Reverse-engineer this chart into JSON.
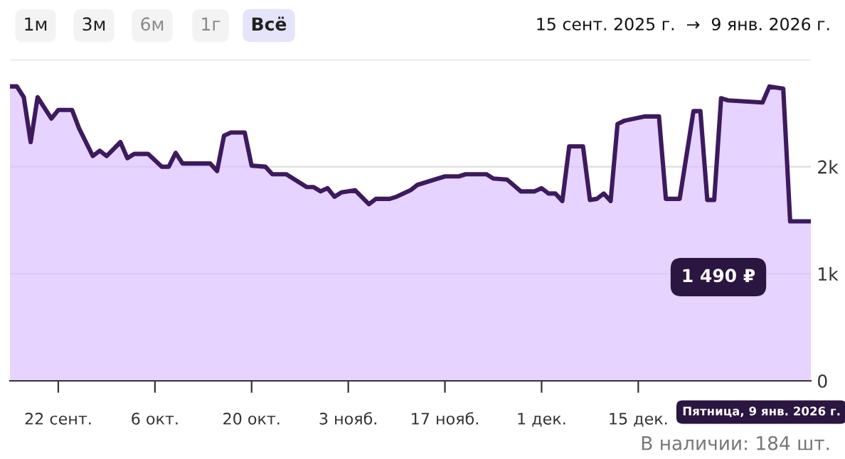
{
  "chart_data": {
    "type": "area",
    "x": [
      "2025-09-15",
      "2025-09-16",
      "2025-09-17",
      "2025-09-18",
      "2025-09-19",
      "2025-09-21",
      "2025-09-22",
      "2025-09-24",
      "2025-09-25",
      "2025-09-27",
      "2025-09-28",
      "2025-09-29",
      "2025-10-01",
      "2025-10-02",
      "2025-10-03",
      "2025-10-05",
      "2025-10-07",
      "2025-10-08",
      "2025-10-09",
      "2025-10-10",
      "2025-10-14",
      "2025-10-15",
      "2025-10-16",
      "2025-10-17",
      "2025-10-19",
      "2025-10-20",
      "2025-10-22",
      "2025-10-23",
      "2025-10-25",
      "2025-10-28",
      "2025-10-29",
      "2025-10-30",
      "2025-10-31",
      "2025-11-01",
      "2025-11-02",
      "2025-11-04",
      "2025-11-06",
      "2025-11-07",
      "2025-11-09",
      "2025-11-10",
      "2025-11-12",
      "2025-11-13",
      "2025-11-14",
      "2025-11-17",
      "2025-11-19",
      "2025-11-20",
      "2025-11-23",
      "2025-11-24",
      "2025-11-26",
      "2025-11-28",
      "2025-11-30",
      "2025-12-01",
      "2025-12-02",
      "2025-12-03",
      "2025-12-04",
      "2025-12-05",
      "2025-12-07",
      "2025-12-08",
      "2025-12-09",
      "2025-12-10",
      "2025-12-11",
      "2025-12-12",
      "2025-12-13",
      "2025-12-16",
      "2025-12-18",
      "2025-12-19",
      "2025-12-21",
      "2025-12-23",
      "2025-12-24",
      "2025-12-25",
      "2025-12-26",
      "2025-12-27",
      "2025-12-28",
      "2026-01-02",
      "2026-01-03",
      "2026-01-05",
      "2026-01-06",
      "2026-01-09"
    ],
    "series": [
      {
        "color": "#3d1a5e",
        "values": [
          2750,
          2750,
          2650,
          2230,
          2650,
          2450,
          2530,
          2530,
          2360,
          2100,
          2150,
          2100,
          2230,
          2080,
          2120,
          2120,
          2000,
          2000,
          2130,
          2030,
          2030,
          1960,
          2290,
          2320,
          2320,
          2010,
          2000,
          1930,
          1930,
          1810,
          1810,
          1770,
          1800,
          1720,
          1760,
          1780,
          1650,
          1700,
          1700,
          1720,
          1780,
          1830,
          1850,
          1910,
          1910,
          1930,
          1930,
          1890,
          1880,
          1770,
          1770,
          1800,
          1750,
          1750,
          1680,
          2190,
          2190,
          1690,
          1700,
          1750,
          1680,
          2400,
          2430,
          2470,
          2470,
          1700,
          1700,
          2520,
          2520,
          1690,
          1690,
          2640,
          2620,
          2600,
          2750,
          2730,
          1490,
          1490
        ]
      }
    ],
    "xlim": [
      "2025-09-15",
      "2026-01-09"
    ],
    "xticks": [
      {
        "value": "2025-09-22",
        "label": "22 сент."
      },
      {
        "value": "2025-10-06",
        "label": "6 окт."
      },
      {
        "value": "2025-10-20",
        "label": "20 окт."
      },
      {
        "value": "2025-11-03",
        "label": "3 нояб."
      },
      {
        "value": "2025-11-17",
        "label": "17 нояб."
      },
      {
        "value": "2025-12-01",
        "label": "1 дек."
      },
      {
        "value": "2025-12-15",
        "label": "15 дек."
      }
    ],
    "ylim": [
      0,
      3000
    ],
    "yticks": [
      {
        "value": 0,
        "label": "0"
      },
      {
        "value": 1000,
        "label": "1k"
      },
      {
        "value": 2000,
        "label": "2k"
      },
      {
        "value": 3000,
        "label": null
      }
    ],
    "grid": "y",
    "marker": "none",
    "annotations": [
      "1м",
      "3м",
      "6м",
      "1г",
      "Всё",
      "15 сент. 2025 г.  →  9 янв. 2026 г.",
      "В наличии: 184 шт.",
      "1 490 ₽",
      "Пятница, 9 янв. 2026 г."
    ]
  }
}
